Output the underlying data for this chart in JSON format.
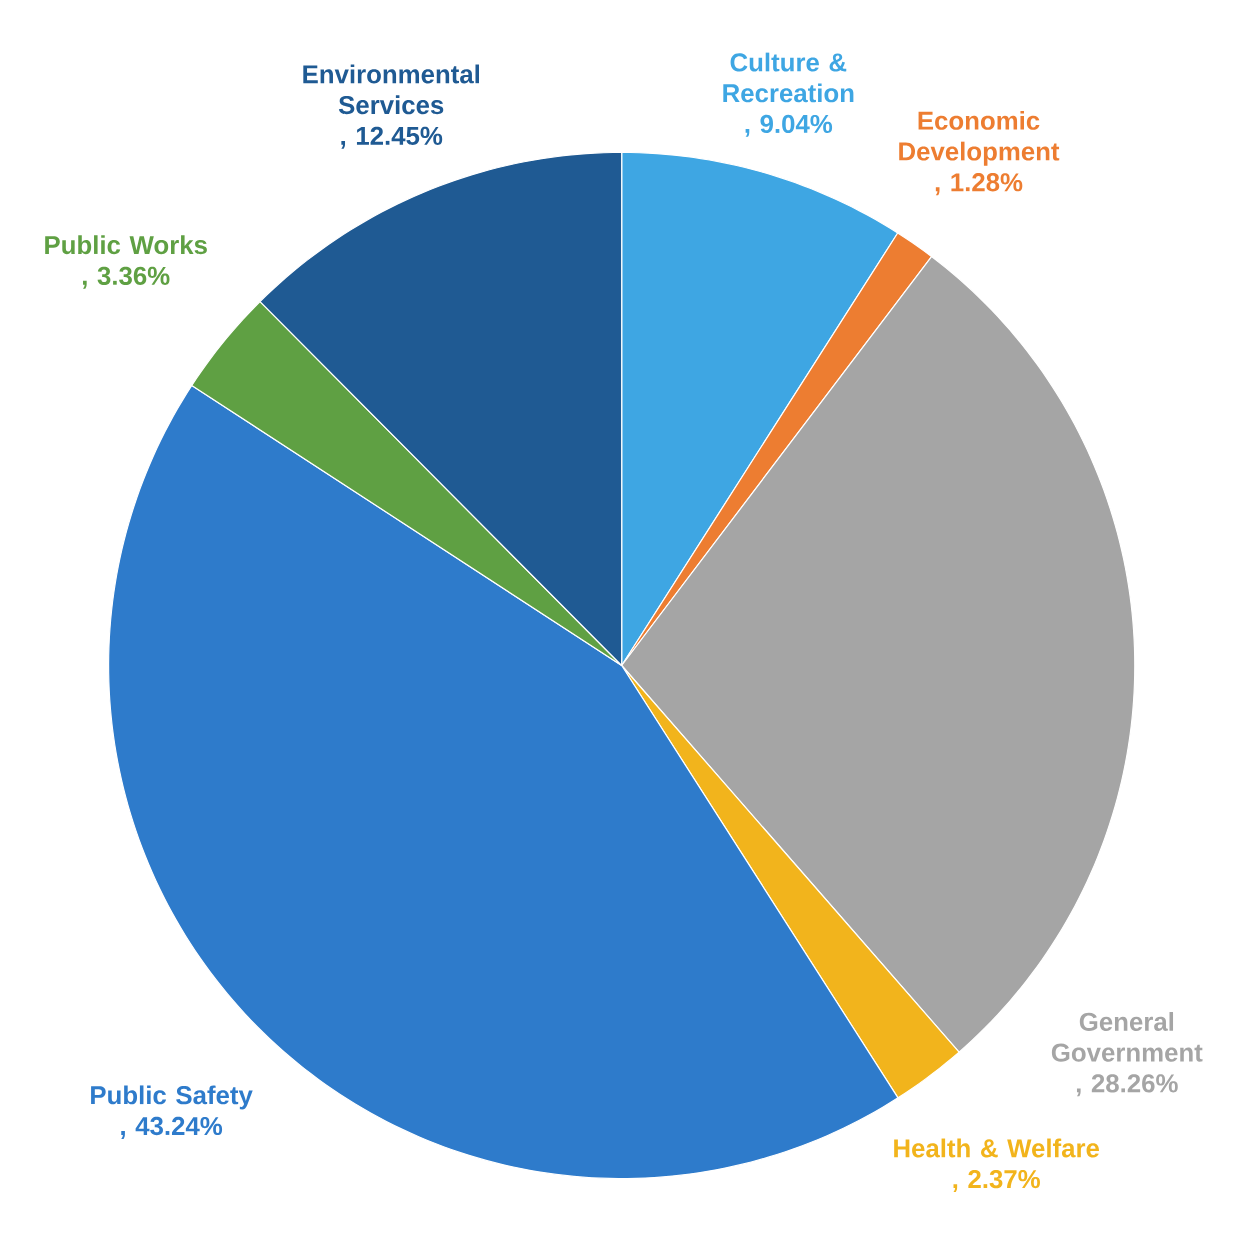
{
  "chart_data": {
    "type": "pie",
    "categories": [
      "Culture & Recreation",
      "Economic Development",
      "General Government",
      "Health & Welfare",
      "Public Safety",
      "Public Works",
      "Environmental Services"
    ],
    "values": [
      9.04,
      1.28,
      28.26,
      2.37,
      43.24,
      3.36,
      12.45
    ],
    "colors": [
      "#3ea6e3",
      "#ed7d31",
      "#a5a5a5",
      "#f2b41c",
      "#2e7bcb",
      "#5fa043",
      "#1f5a93"
    ],
    "value_labels": [
      ", 9.04%",
      ", 1.28%",
      ", 28.26%",
      ", 2.37%",
      ", 43.24%",
      ", 3.36%",
      ", 12.45%"
    ]
  }
}
